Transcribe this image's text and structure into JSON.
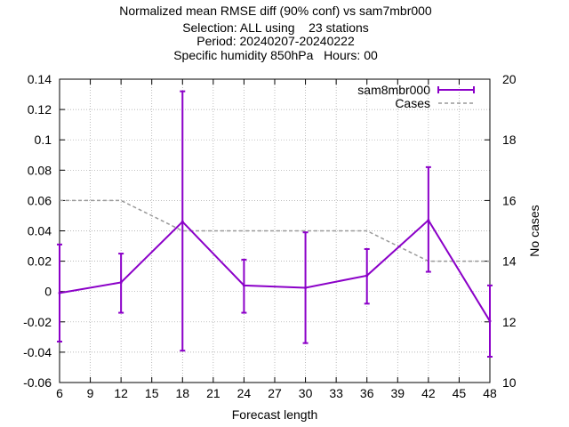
{
  "chart_data": {
    "type": "line",
    "title_lines": [
      "Normalized mean RMSE diff (90% conf) vs sam7mbr000",
      "Selection: ALL using    23 stations",
      "Period: 20240207-20240222",
      "Specific humidity 850hPa   Hours: 00"
    ],
    "xlabel": "Forecast length",
    "ylabel": "",
    "y2label": "No cases",
    "xlim": [
      6,
      48
    ],
    "ylim": [
      -0.06,
      0.14
    ],
    "y2lim": [
      10,
      20
    ],
    "xticks": [
      "6",
      "9",
      "12",
      "15",
      "18",
      "21",
      "24",
      "27",
      "30",
      "33",
      "36",
      "39",
      "42",
      "45",
      "48"
    ],
    "yticks": [
      "-0.06",
      "-0.04",
      "-0.02",
      "0",
      "0.02",
      "0.04",
      "0.06",
      "0.08",
      "0.1",
      "0.12",
      "0.14"
    ],
    "y2ticks": [
      "10",
      "12",
      "14",
      "16",
      "18",
      "20"
    ],
    "grid": true,
    "legend_position": "top-right",
    "series": [
      {
        "name": "sam8mbr000",
        "color": "#8b00c8",
        "style": "line-errorbars",
        "x": [
          6,
          12,
          18,
          24,
          30,
          36,
          42,
          48
        ],
        "y": [
          -0.001,
          0.006,
          0.046,
          0.004,
          0.0025,
          0.0105,
          0.047,
          -0.0195
        ],
        "ylow": [
          -0.033,
          -0.014,
          -0.039,
          -0.014,
          -0.034,
          -0.008,
          0.013,
          -0.043
        ],
        "yhigh": [
          0.031,
          0.025,
          0.132,
          0.021,
          0.039,
          0.028,
          0.082,
          0.004
        ]
      },
      {
        "name": "Cases",
        "color": "#999999",
        "style": "dashed",
        "axis": "y2",
        "x": [
          6,
          12,
          18,
          24,
          30,
          36,
          42,
          48
        ],
        "y": [
          16,
          16,
          15,
          15,
          15,
          15,
          14,
          14
        ]
      }
    ]
  }
}
